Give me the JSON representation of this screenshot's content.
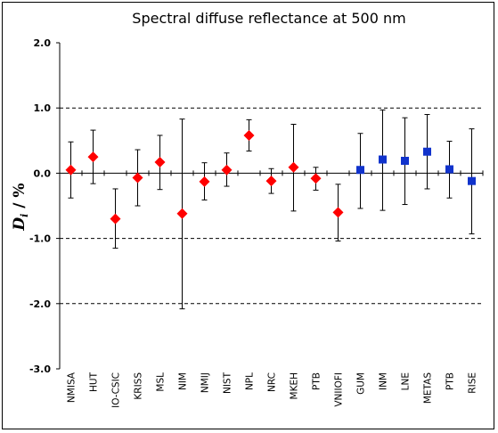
{
  "chart_data": {
    "type": "scatter",
    "title": "Spectral diffuse reflectance at 500 nm",
    "ylabel": {
      "main": "D",
      "sub": "i",
      "rest": " / %"
    },
    "xlabel": "",
    "ylim": [
      -3.0,
      2.0
    ],
    "yticks": [
      "2.0",
      "1.0",
      "0.0",
      "-1.0",
      "-2.0",
      "-3.0"
    ],
    "ytick_values": [
      2,
      1,
      0,
      -1,
      -2,
      -3
    ],
    "dashed_gridlines": [
      1,
      -1,
      -2
    ],
    "categories": [
      "NMISA",
      "HUT",
      "IO-CSIC",
      "KRISS",
      "MSL",
      "NIM",
      "NMIJ",
      "NIST",
      "NPL",
      "NRC",
      "MKEH",
      "PTB",
      "VNIIOFI",
      "GUM",
      "INM",
      "LNE",
      "METAS",
      "PTB",
      "RISE"
    ],
    "series": [
      {
        "marker": "diamond",
        "color": "#ff0000",
        "points": [
          {
            "category": "NMISA",
            "value": 0.05,
            "low": -0.38,
            "high": 0.48
          },
          {
            "category": "HUT",
            "value": 0.25,
            "low": -0.16,
            "high": 0.66
          },
          {
            "category": "IO-CSIC",
            "value": -0.7,
            "low": -1.15,
            "high": -0.24
          },
          {
            "category": "KRISS",
            "value": -0.07,
            "low": -0.5,
            "high": 0.36
          },
          {
            "category": "MSL",
            "value": 0.17,
            "low": -0.25,
            "high": 0.58
          },
          {
            "category": "NIM",
            "value": -0.62,
            "low": -2.08,
            "high": 0.83
          },
          {
            "category": "NMIJ",
            "value": -0.13,
            "low": -0.41,
            "high": 0.16
          },
          {
            "category": "NIST",
            "value": 0.05,
            "low": -0.2,
            "high": 0.31
          },
          {
            "category": "NPL",
            "value": 0.58,
            "low": 0.34,
            "high": 0.82
          },
          {
            "category": "NRC",
            "value": -0.12,
            "low": -0.31,
            "high": 0.07
          },
          {
            "category": "MKEH",
            "value": 0.09,
            "low": -0.58,
            "high": 0.75
          },
          {
            "category": "PTB",
            "value": -0.08,
            "low": -0.26,
            "high": 0.09
          },
          {
            "category": "VNIIOFI",
            "value": -0.6,
            "low": -1.04,
            "high": -0.17
          }
        ]
      },
      {
        "marker": "square",
        "color": "#1133cc",
        "points": [
          {
            "category": "GUM",
            "value": 0.05,
            "low": -0.54,
            "high": 0.61
          },
          {
            "category": "INM",
            "value": 0.21,
            "low": -0.57,
            "high": 0.97
          },
          {
            "category": "LNE",
            "value": 0.19,
            "low": -0.48,
            "high": 0.85
          },
          {
            "category": "METAS",
            "value": 0.33,
            "low": -0.24,
            "high": 0.9
          },
          {
            "category": "PTB",
            "value": 0.06,
            "low": -0.38,
            "high": 0.49
          },
          {
            "category": "RISE",
            "value": -0.12,
            "low": -0.93,
            "high": 0.68
          }
        ]
      }
    ]
  }
}
